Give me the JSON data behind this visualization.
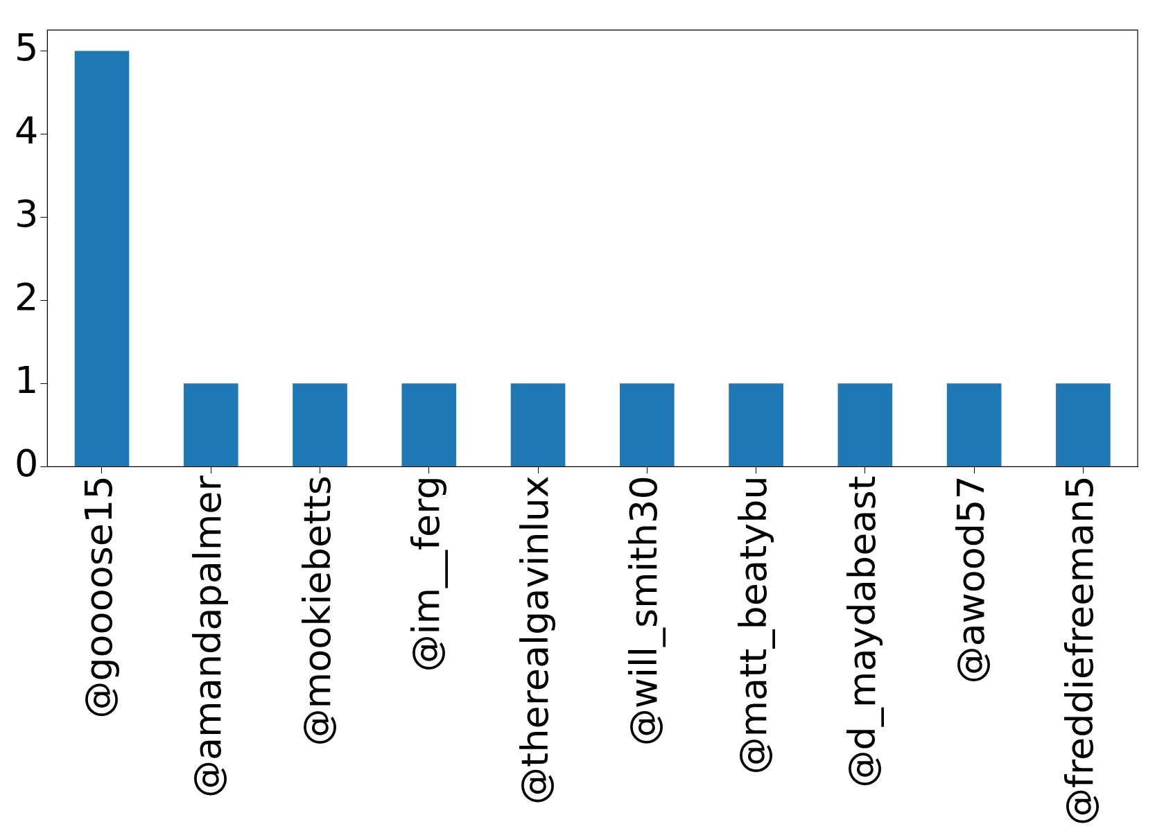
{
  "chart_data": {
    "type": "bar",
    "categories": [
      "@goooose15",
      "@amandapalmer",
      "@mookiebetts",
      "@im__ferg",
      "@therealgavinlux",
      "@will_smith30",
      "@matt_beatybu",
      "@d_maydabeast",
      "@awood57",
      "@freddiefreeman5"
    ],
    "values": [
      5,
      1,
      1,
      1,
      1,
      1,
      1,
      1,
      1,
      1
    ],
    "color": "#1f77b4",
    "ylim": [
      0,
      5.25
    ],
    "yticks": [
      0,
      1,
      2,
      3,
      4,
      5
    ],
    "grid": false,
    "legend": false
  }
}
